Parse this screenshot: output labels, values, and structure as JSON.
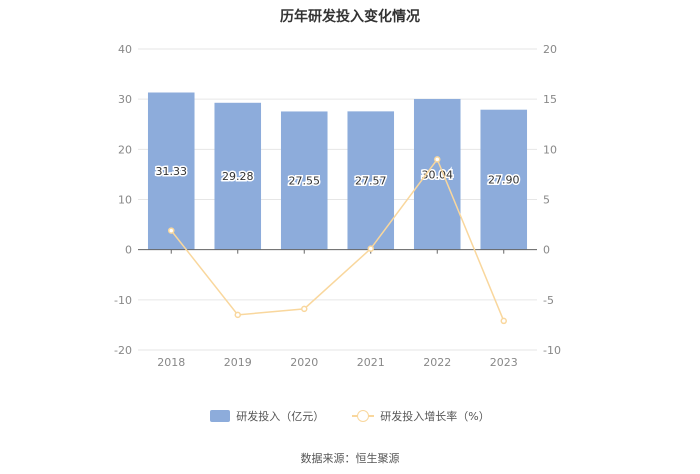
{
  "colors": {
    "bar": "#8DACDB",
    "line": "#F9D79D",
    "axis_text": "#888888",
    "grid": "#E6E6E6"
  },
  "source_text": "数据来源：恒生聚源",
  "chart_data": {
    "type": "bar",
    "title": "历年研发投入变化情况",
    "categories": [
      "2018",
      "2019",
      "2020",
      "2021",
      "2022",
      "2023"
    ],
    "series": [
      {
        "name": "研发投入（亿元）",
        "type": "bar",
        "axis": "left",
        "values": [
          31.33,
          29.28,
          27.55,
          27.57,
          30.04,
          27.9
        ],
        "labels": [
          "31.33",
          "29.28",
          "27.55",
          "27.57",
          "30.04",
          "27.90"
        ]
      },
      {
        "name": "研发投入增长率（%）",
        "type": "line",
        "axis": "right",
        "values": [
          1.9,
          -6.5,
          -5.9,
          0.1,
          9.0,
          -7.1
        ]
      }
    ],
    "left_axis": {
      "min": -20,
      "max": 40,
      "ticks": [
        "-20",
        "-10",
        "0",
        "10",
        "20",
        "30",
        "40"
      ]
    },
    "right_axis": {
      "min": -10,
      "max": 20,
      "ticks": [
        "-10",
        "-5",
        "0",
        "5",
        "10",
        "15",
        "20"
      ]
    },
    "grid": true,
    "legend_position": "bottom"
  }
}
